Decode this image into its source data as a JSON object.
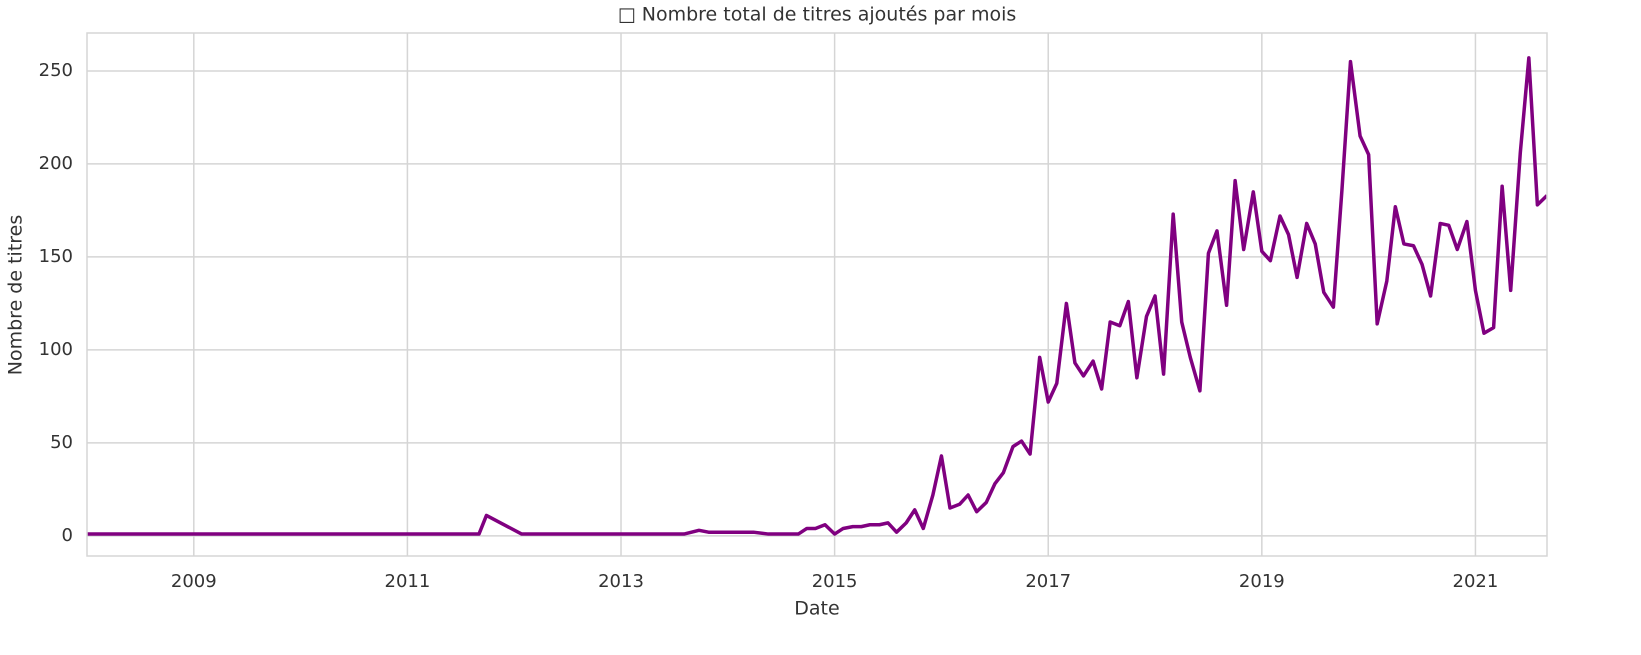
{
  "chart_data": {
    "type": "line",
    "title": "□ Nombre total de titres ajoutés par mois",
    "xlabel": "Date",
    "ylabel": "Nombre de titres",
    "x": [
      2008.0,
      2011.67,
      2011.74,
      2012.07,
      2013.59,
      2013.73,
      2013.82,
      2014.24,
      2014.38,
      2014.66,
      2014.74,
      2014.82,
      2014.91,
      2015.0,
      2015.08,
      2015.17,
      2015.25,
      2015.33,
      2015.42,
      2015.5,
      2015.58,
      2015.67,
      2015.75,
      2015.83,
      2015.92,
      2016.0,
      2016.08,
      2016.17,
      2016.25,
      2016.33,
      2016.42,
      2016.5,
      2016.58,
      2016.67,
      2016.75,
      2016.83,
      2016.92,
      2017.0,
      2017.08,
      2017.17,
      2017.25,
      2017.33,
      2017.42,
      2017.5,
      2017.58,
      2017.67,
      2017.75,
      2017.83,
      2017.92,
      2018.0,
      2018.08,
      2018.17,
      2018.25,
      2018.33,
      2018.42,
      2018.5,
      2018.58,
      2018.67,
      2018.75,
      2018.83,
      2018.92,
      2019.0,
      2019.08,
      2019.17,
      2019.25,
      2019.33,
      2019.42,
      2019.5,
      2019.58,
      2019.67,
      2019.75,
      2019.83,
      2019.92,
      2020.0,
      2020.08,
      2020.17,
      2020.25,
      2020.33,
      2020.42,
      2020.5,
      2020.58,
      2020.67,
      2020.75,
      2020.83,
      2020.92,
      2021.0,
      2021.08,
      2021.17,
      2021.25,
      2021.33,
      2021.42,
      2021.5,
      2021.58,
      2021.67
    ],
    "series": [
      {
        "name": "Nombre de titres",
        "color": "#800080",
        "values": [
          1,
          1,
          11,
          1,
          1,
          3,
          2,
          2,
          1,
          1,
          4,
          4,
          6,
          1,
          4,
          5,
          5,
          6,
          6,
          7,
          2,
          7,
          14,
          4,
          22,
          43,
          15,
          17,
          22,
          13,
          18,
          28,
          34,
          48,
          51,
          44,
          96,
          72,
          82,
          125,
          93,
          86,
          94,
          79,
          115,
          113,
          126,
          85,
          118,
          129,
          87,
          173,
          115,
          96,
          78,
          152,
          164,
          124,
          191,
          154,
          185,
          153,
          148,
          172,
          162,
          139,
          168,
          157,
          131,
          123,
          186,
          255,
          215,
          205,
          114,
          137,
          177,
          157,
          156,
          146,
          129,
          168,
          167,
          154,
          169,
          132,
          109,
          112,
          188,
          132,
          206,
          257,
          178,
          183
        ]
      }
    ],
    "xlim": [
      2008.0,
      2021.67
    ],
    "xticks": [
      2009,
      2011,
      2013,
      2015,
      2017,
      2019,
      2021
    ],
    "ylim": [
      -10.8,
      270.4
    ],
    "yticks": [
      0,
      50,
      100,
      150,
      200,
      250
    ],
    "grid": true
  }
}
